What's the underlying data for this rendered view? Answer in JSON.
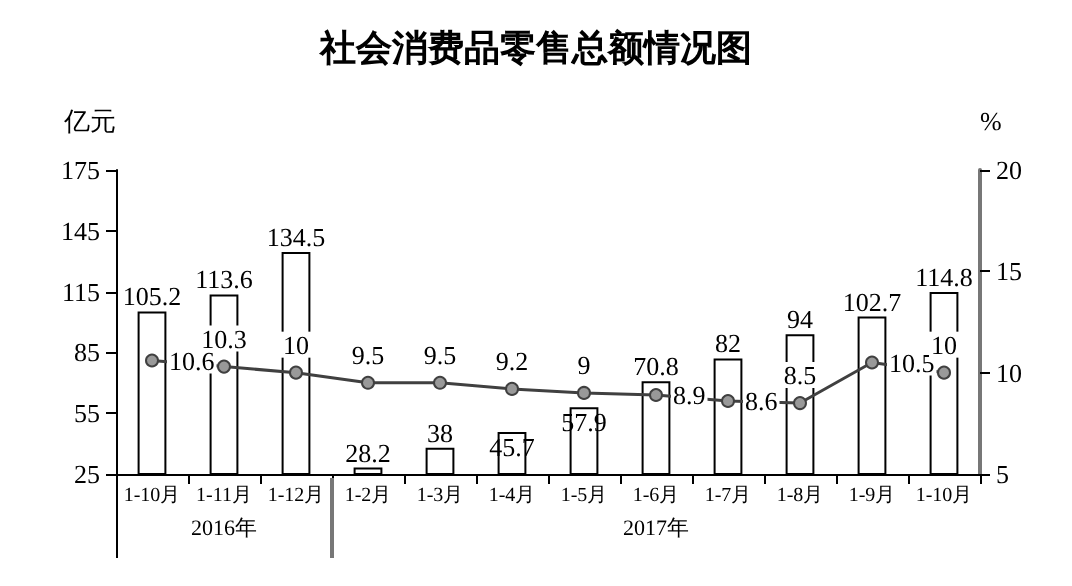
{
  "chart_data": {
    "type": "bar",
    "title": "社会消费品零售总额情况图",
    "ylabel": "亿元",
    "y2label": "%",
    "categories": [
      "1-10月",
      "1-11月",
      "1-12月",
      "1-2月",
      "1-3月",
      "1-4月",
      "1-5月",
      "1-6月",
      "1-7月",
      "1-8月",
      "1-9月",
      "1-10月"
    ],
    "series": [
      {
        "color": "#ffffff",
        "values": [
          105.2,
          113.6,
          134.5,
          28.2,
          38,
          45.7,
          57.9,
          70.8,
          82,
          94,
          102.7,
          114.8
        ]
      },
      {
        "type": "line",
        "axis": "y2",
        "color": "#404040",
        "marker": "circle",
        "values": [
          10.6,
          10.3,
          10,
          9.5,
          9.5,
          9.2,
          9,
          8.9,
          8.6,
          8.5,
          10.5,
          10
        ]
      }
    ],
    "ylim": [
      25,
      175
    ],
    "yticks": [
      25,
      55,
      85,
      115,
      145,
      175
    ],
    "y2lim": [
      5,
      20
    ],
    "y2ticks": [
      5,
      10,
      15,
      20
    ],
    "data_labels": true,
    "grid": false,
    "annotations": [
      "2016年",
      "2017年"
    ]
  }
}
